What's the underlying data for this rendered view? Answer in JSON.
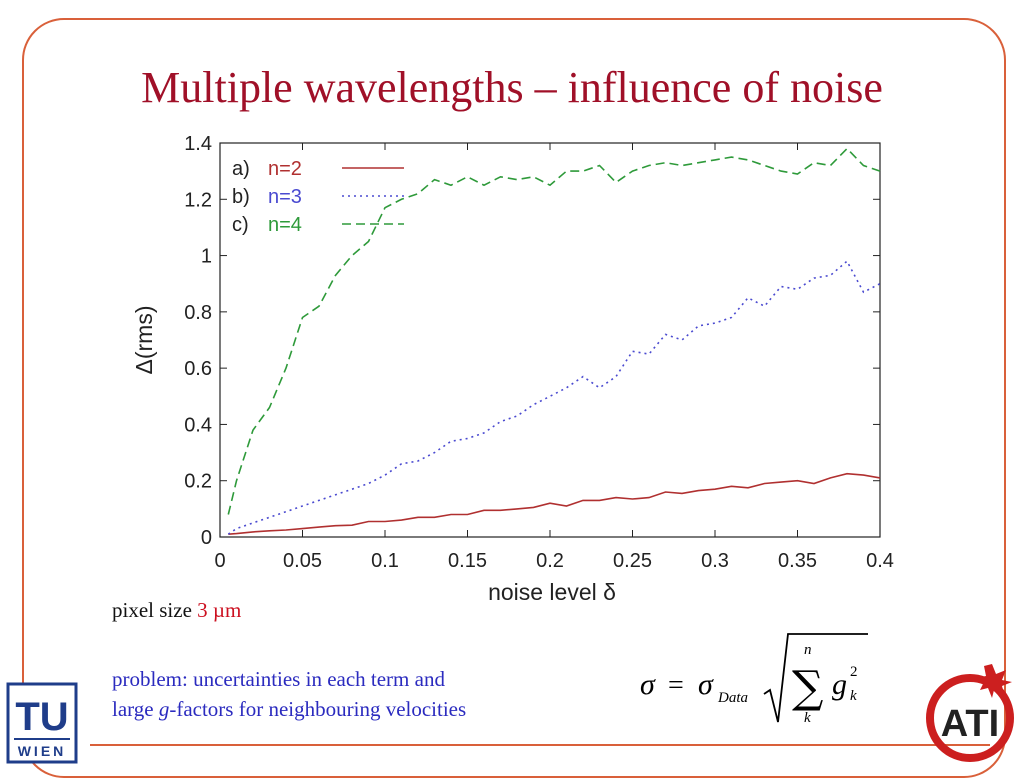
{
  "slide": {
    "title": "Multiple wavelengths – influence of noise",
    "pixel_label": "pixel size ",
    "pixel_value": "3 µm",
    "problem_line1": "problem: uncertainties in each term and",
    "problem_line2_pre": "large ",
    "problem_line2_g": "g",
    "problem_line2_post": "-factors for neighbouring velocities",
    "formula": {
      "lhs": "σ",
      "eq": "=",
      "sigma": "σ",
      "sub": "Data",
      "sum_top": "n",
      "sum_bottom": "k",
      "g": "g",
      "g_sup": "2",
      "g_sub": "k"
    },
    "logo_left": {
      "top": "TU",
      "bottom": "WIEN"
    },
    "logo_right": {
      "text": "ATI"
    }
  },
  "chart_data": {
    "type": "line",
    "xlabel": "noise level δ",
    "ylabel": "Δ(rms)",
    "xlim": [
      0,
      0.4
    ],
    "ylim": [
      0,
      1.4
    ],
    "xticks": [
      "0",
      "0.05",
      "0.1",
      "0.15",
      "0.2",
      "0.25",
      "0.3",
      "0.35",
      "0.4"
    ],
    "yticks": [
      "0",
      "0.2",
      "0.4",
      "0.6",
      "0.8",
      "1",
      "1.2",
      "1.4"
    ],
    "grid": false,
    "legend_position": "top-left",
    "x": [
      0.005,
      0.01,
      0.02,
      0.03,
      0.04,
      0.05,
      0.06,
      0.07,
      0.08,
      0.09,
      0.1,
      0.11,
      0.12,
      0.13,
      0.14,
      0.15,
      0.16,
      0.17,
      0.18,
      0.19,
      0.2,
      0.21,
      0.22,
      0.23,
      0.24,
      0.25,
      0.26,
      0.27,
      0.28,
      0.29,
      0.3,
      0.31,
      0.32,
      0.33,
      0.34,
      0.35,
      0.36,
      0.37,
      0.38,
      0.39,
      0.4
    ],
    "series": [
      {
        "name": "n=2",
        "legend_prefix": "a)",
        "color": "#b03030",
        "dash": "solid",
        "values": [
          0.01,
          0.012,
          0.018,
          0.022,
          0.025,
          0.03,
          0.035,
          0.04,
          0.042,
          0.055,
          0.055,
          0.06,
          0.07,
          0.07,
          0.08,
          0.08,
          0.095,
          0.095,
          0.1,
          0.105,
          0.12,
          0.11,
          0.13,
          0.13,
          0.14,
          0.135,
          0.14,
          0.16,
          0.155,
          0.165,
          0.17,
          0.18,
          0.175,
          0.19,
          0.195,
          0.2,
          0.19,
          0.21,
          0.225,
          0.22,
          0.21
        ]
      },
      {
        "name": "n=3",
        "legend_prefix": "b)",
        "color": "#4a4ad0",
        "dash": "dot",
        "values": [
          0.01,
          0.03,
          0.05,
          0.07,
          0.09,
          0.11,
          0.13,
          0.15,
          0.17,
          0.19,
          0.22,
          0.26,
          0.27,
          0.3,
          0.34,
          0.35,
          0.37,
          0.41,
          0.43,
          0.47,
          0.5,
          0.53,
          0.57,
          0.53,
          0.57,
          0.66,
          0.65,
          0.72,
          0.7,
          0.75,
          0.76,
          0.78,
          0.85,
          0.82,
          0.89,
          0.88,
          0.92,
          0.93,
          0.98,
          0.87,
          0.9
        ]
      },
      {
        "name": "n=4",
        "legend_prefix": "c)",
        "color": "#2e9a3a",
        "dash": "dash",
        "values": [
          0.08,
          0.2,
          0.38,
          0.46,
          0.6,
          0.78,
          0.82,
          0.93,
          1.0,
          1.05,
          1.17,
          1.2,
          1.22,
          1.27,
          1.25,
          1.28,
          1.25,
          1.28,
          1.27,
          1.28,
          1.25,
          1.3,
          1.3,
          1.32,
          1.26,
          1.3,
          1.32,
          1.33,
          1.32,
          1.33,
          1.34,
          1.35,
          1.34,
          1.32,
          1.3,
          1.29,
          1.33,
          1.32,
          1.38,
          1.32,
          1.3
        ]
      }
    ]
  }
}
